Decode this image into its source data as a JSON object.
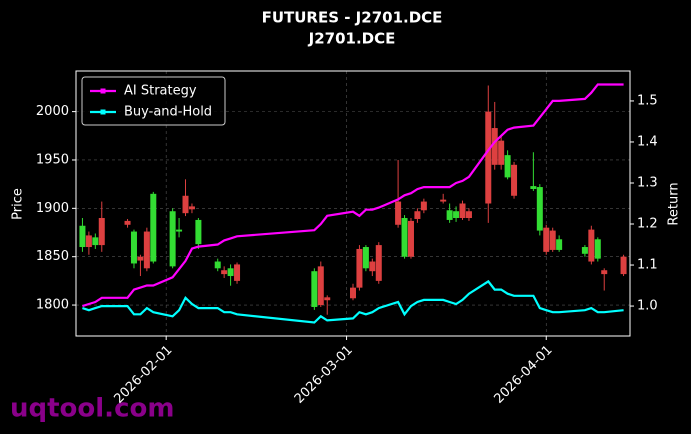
{
  "chart_data": {
    "type": "candlestick",
    "title": "FUTURES - J2701.DCE",
    "subtitle": "J2701.DCE",
    "y_label": "Price",
    "y2_label": "Return",
    "watermark": "uqtool.com",
    "up_color": "#33dd33",
    "down_color": "#dd4040",
    "grid": true,
    "legend": "upper left",
    "xlim": [
      "2026-01-18",
      "2026-04-14"
    ],
    "xticks": [
      "2026-02-01",
      "2026-03-01",
      "2026-04-01"
    ],
    "ylim": [
      1768,
      2042
    ],
    "yticks": [
      1800,
      1850,
      1900,
      1950,
      2000
    ],
    "y2lim": [
      0.927,
      1.573
    ],
    "y2ticks": [
      {
        "value": 1,
        "label": "1.0"
      },
      1.1,
      1.2,
      1.3,
      1.4,
      1.5
    ],
    "x": [
      "2026-01-19",
      "2026-01-20",
      "2026-01-21",
      "2026-01-22",
      "2026-01-26",
      "2026-01-27",
      "2026-01-28",
      "2026-01-29",
      "2026-01-30",
      "2026-02-02",
      "2026-02-03",
      "2026-02-04",
      "2026-02-05",
      "2026-02-06",
      "2026-02-09",
      "2026-02-10",
      "2026-02-11",
      "2026-02-12",
      "2026-02-24",
      "2026-02-25",
      "2026-02-26",
      "2026-03-02",
      "2026-03-03",
      "2026-03-04",
      "2026-03-05",
      "2026-03-06",
      "2026-03-09",
      "2026-03-10",
      "2026-03-11",
      "2026-03-12",
      "2026-03-13",
      "2026-03-16",
      "2026-03-17",
      "2026-03-18",
      "2026-03-19",
      "2026-03-20",
      "2026-03-23",
      "2026-03-24",
      "2026-03-25",
      "2026-03-26",
      "2026-03-27",
      "2026-03-30",
      "2026-03-31",
      "2026-04-01",
      "2026-04-02",
      "2026-04-03",
      "2026-04-07",
      "2026-04-08",
      "2026-04-09",
      "2026-04-10",
      "2026-04-13"
    ],
    "open": [
      1860,
      1872,
      1862,
      1890,
      1887,
      1843,
      1850,
      1876,
      1845,
      1840,
      1876,
      1913,
      1902,
      1863,
      1838,
      1836,
      1830,
      1842,
      1798,
      1840,
      1808,
      1818,
      1858,
      1838,
      1845,
      1862,
      1907,
      1850,
      1887,
      1897,
      1907,
      1909,
      1888,
      1890,
      1905,
      1897,
      2000,
      1983,
      1970,
      1932,
      1945,
      1920,
      1877,
      1880,
      1877,
      1857,
      1853,
      1878,
      1848,
      1836,
      1850
    ],
    "high": [
      1890,
      1876,
      1874,
      1907,
      1889,
      1878,
      1852,
      1880,
      1917,
      1900,
      1890,
      1930,
      1905,
      1890,
      1848,
      1840,
      1842,
      1844,
      1838,
      1845,
      1810,
      1822,
      1862,
      1862,
      1848,
      1865,
      1950,
      1893,
      1890,
      1900,
      1910,
      1915,
      1905,
      1902,
      1908,
      1900,
      2027,
      2010,
      1975,
      1960,
      1948,
      1958,
      1925,
      1883,
      1880,
      1872,
      1862,
      1882,
      1870,
      1838,
      1852
    ],
    "low": [
      1855,
      1852,
      1858,
      1855,
      1880,
      1838,
      1830,
      1835,
      1843,
      1838,
      1870,
      1892,
      1895,
      1858,
      1835,
      1828,
      1820,
      1822,
      1795,
      1798,
      1790,
      1805,
      1815,
      1835,
      1830,
      1822,
      1880,
      1848,
      1848,
      1885,
      1895,
      1905,
      1885,
      1886,
      1888,
      1887,
      1885,
      1940,
      1940,
      1930,
      1910,
      1918,
      1872,
      1852,
      1855,
      1855,
      1850,
      1842,
      1845,
      1815,
      1830
    ],
    "close": [
      1882,
      1860,
      1870,
      1862,
      1883,
      1876,
      1846,
      1838,
      1915,
      1897,
      1878,
      1895,
      1899,
      1888,
      1845,
      1832,
      1838,
      1825,
      1835,
      1800,
      1805,
      1807,
      1818,
      1860,
      1835,
      1825,
      1883,
      1890,
      1850,
      1889,
      1898,
      1907,
      1898,
      1897,
      1890,
      1890,
      1905,
      1945,
      1945,
      1955,
      1913,
      1923,
      1922,
      1855,
      1857,
      1868,
      1860,
      1845,
      1868,
      1832,
      1832
    ],
    "series": [
      {
        "name": "AI Strategy",
        "color": "#ff00ff",
        "axis": "y2",
        "values": [
          1.0,
          1.005,
          1.01,
          1.02,
          1.02,
          1.04,
          1.045,
          1.05,
          1.05,
          1.07,
          1.09,
          1.11,
          1.14,
          1.145,
          1.15,
          1.16,
          1.165,
          1.17,
          1.185,
          1.2,
          1.22,
          1.23,
          1.22,
          1.235,
          1.235,
          1.24,
          1.26,
          1.27,
          1.275,
          1.285,
          1.29,
          1.29,
          1.29,
          1.3,
          1.305,
          1.315,
          1.38,
          1.4,
          1.415,
          1.43,
          1.435,
          1.44,
          1.46,
          1.48,
          1.5,
          1.5,
          1.505,
          1.52,
          1.54,
          1.54,
          1.54
        ]
      },
      {
        "name": "Buy-and-Hold",
        "color": "#00ffff",
        "axis": "y2",
        "values": [
          0.995,
          0.99,
          0.995,
          1.0,
          1.0,
          0.98,
          0.98,
          0.995,
          0.985,
          0.975,
          0.99,
          1.02,
          1.005,
          0.995,
          0.995,
          0.985,
          0.985,
          0.98,
          0.96,
          0.975,
          0.965,
          0.97,
          0.985,
          0.98,
          0.985,
          0.995,
          1.01,
          0.98,
          1.0,
          1.01,
          1.015,
          1.015,
          1.01,
          1.005,
          1.015,
          1.03,
          1.06,
          1.04,
          1.04,
          1.03,
          1.025,
          1.025,
          0.995,
          0.99,
          0.985,
          0.985,
          0.99,
          0.995,
          0.985,
          0.985,
          0.99
        ]
      }
    ]
  }
}
